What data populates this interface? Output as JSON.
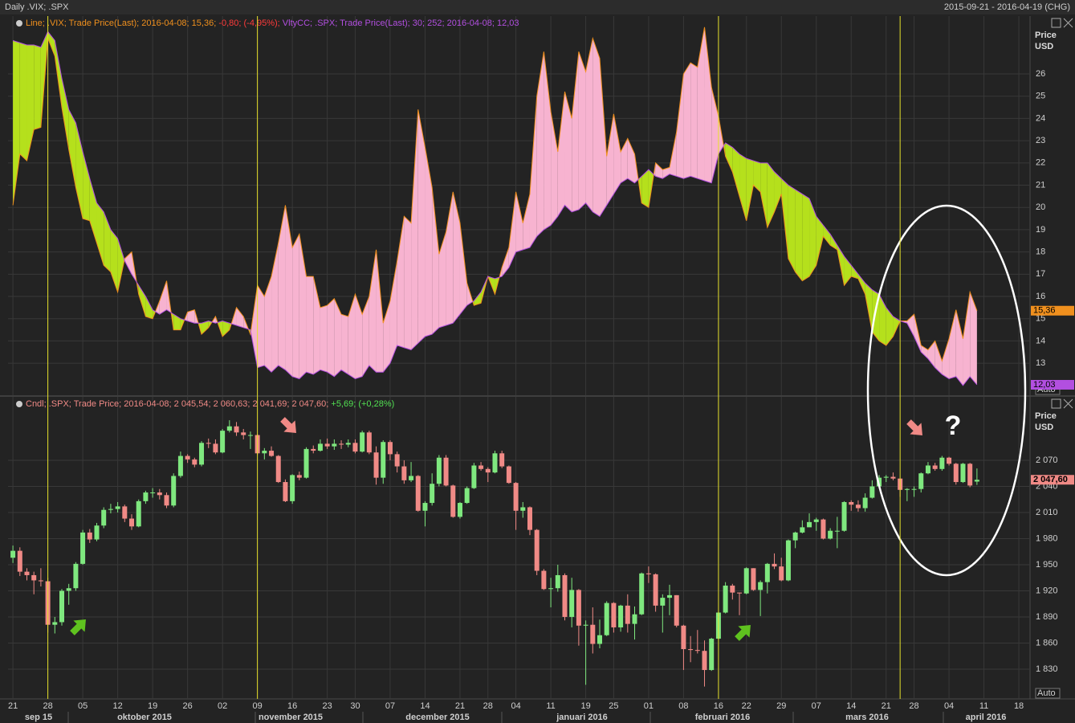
{
  "header": {
    "title": "Daily .VIX; .SPX",
    "range": "2015-09-21 - 2016-04-19 (CHG)"
  },
  "x_axis": {
    "xlim": [
      -0.7,
      145.6
    ],
    "xticks": [
      {
        "value": 0,
        "label": "21"
      },
      {
        "value": 5,
        "label": "28"
      },
      {
        "value": 10,
        "label": "05"
      },
      {
        "value": 15,
        "label": "12"
      },
      {
        "value": 20,
        "label": "19"
      },
      {
        "value": 25,
        "label": "26"
      },
      {
        "value": 30,
        "label": "02"
      },
      {
        "value": 35,
        "label": "09"
      },
      {
        "value": 40,
        "label": "16"
      },
      {
        "value": 45,
        "label": "23"
      },
      {
        "value": 49,
        "label": "30"
      },
      {
        "value": 54,
        "label": "07"
      },
      {
        "value": 59,
        "label": "14"
      },
      {
        "value": 64,
        "label": "21"
      },
      {
        "value": 68,
        "label": "28"
      },
      {
        "value": 72,
        "label": "04"
      },
      {
        "value": 77,
        "label": "11"
      },
      {
        "value": 82,
        "label": "19"
      },
      {
        "value": 86,
        "label": "25"
      },
      {
        "value": 91,
        "label": "01"
      },
      {
        "value": 96,
        "label": "08"
      },
      {
        "value": 101,
        "label": "16"
      },
      {
        "value": 105,
        "label": "22"
      },
      {
        "value": 110,
        "label": "29"
      },
      {
        "value": 115,
        "label": "07"
      },
      {
        "value": 120,
        "label": "14"
      },
      {
        "value": 125,
        "label": "21"
      },
      {
        "value": 129,
        "label": "28"
      },
      {
        "value": 134,
        "label": "04"
      },
      {
        "value": 139,
        "label": "11"
      },
      {
        "value": 144,
        "label": "18"
      }
    ],
    "months": [
      "sep 15",
      "oktober 2015",
      "november 2015",
      "december 2015",
      "januari 2016",
      "februari 2016",
      "mars 2016",
      "april 2016"
    ]
  },
  "event_lines": [
    5,
    35,
    101,
    127
  ],
  "annotations": {
    "question": "?"
  },
  "chart_data": [
    {
      "type": "line",
      "axis_label": [
        "Price",
        "USD"
      ],
      "scale_mode": "Auto",
      "ylim": [
        11.56,
        28.6
      ],
      "yticks": [
        13,
        14,
        15,
        16,
        17,
        18,
        19,
        20,
        21,
        22,
        23,
        24,
        25,
        26
      ],
      "fill_colors": {
        "above": "#f7b3d0",
        "below": "#b5e01c"
      },
      "series": [
        {
          "name": "Line; .VIX; Trade Price(Last); 2016-04-08; 15,36;",
          "change": "-0,80; (-4,95%);",
          "color": "#f0901e",
          "last_label": "15,36",
          "values": [
            20.1,
            22.4,
            22.1,
            23.5,
            23.6,
            27.6,
            26.8,
            24.5,
            22.6,
            20.9,
            19.5,
            19.4,
            18.4,
            17.4,
            17.1,
            16.2,
            17.7,
            18.0,
            16.1,
            15.1,
            15.0,
            15.8,
            16.7,
            14.5,
            14.5,
            15.3,
            15.4,
            14.3,
            14.6,
            15.1,
            14.2,
            14.5,
            15.5,
            15.1,
            14.3,
            16.5,
            16.0,
            16.9,
            18.4,
            20.1,
            18.2,
            18.8,
            16.9,
            16.9,
            15.5,
            15.6,
            15.9,
            15.2,
            15.1,
            16.1,
            15.2,
            16.0,
            18.1,
            14.8,
            15.8,
            17.6,
            19.6,
            19.3,
            24.4,
            22.7,
            20.9,
            17.9,
            18.9,
            20.7,
            19.3,
            16.6,
            15.6,
            15.7,
            16.9,
            16.1,
            17.3,
            18.2,
            20.7,
            19.3,
            20.6,
            25.0,
            27.0,
            24.3,
            22.5,
            25.2,
            24.0,
            27.0,
            26.1,
            27.6,
            26.7,
            22.3,
            24.2,
            22.5,
            23.1,
            22.4,
            20.2,
            20.0,
            22.0,
            21.7,
            21.8,
            23.4,
            26.0,
            26.5,
            26.3,
            28.1,
            25.4,
            24.1,
            22.3,
            21.6,
            20.5,
            19.4,
            21.0,
            20.7,
            19.1,
            19.8,
            20.6,
            17.7,
            17.1,
            16.7,
            16.9,
            17.4,
            18.7,
            18.3,
            18.1,
            16.5,
            16.9,
            16.8,
            16.1,
            14.4,
            14.0,
            13.8,
            14.2,
            14.9,
            14.9,
            15.2,
            13.8,
            13.6,
            14.0,
            13.1,
            14.1,
            15.4,
            14.1,
            16.2,
            15.36
          ]
        },
        {
          "name": "VltyCC; .SPX; Trade Price(Last); 30; 252; 2016-04-08; 12,03",
          "color": "#b24fe0",
          "last_label": "12,03",
          "values": [
            27.5,
            27.4,
            27.3,
            27.3,
            27.2,
            27.9,
            27.5,
            25.8,
            24.4,
            23.8,
            22.5,
            21.3,
            20.2,
            19.8,
            19.0,
            18.6,
            17.6,
            17.0,
            16.5,
            16.0,
            15.4,
            15.2,
            15.4,
            15.2,
            15.0,
            14.9,
            14.8,
            14.8,
            14.9,
            14.8,
            14.9,
            14.8,
            14.7,
            14.6,
            14.5,
            12.8,
            12.9,
            12.6,
            12.9,
            12.7,
            12.4,
            12.3,
            12.6,
            12.5,
            12.7,
            12.6,
            12.4,
            12.7,
            12.5,
            12.3,
            12.4,
            12.9,
            12.6,
            12.6,
            13.0,
            13.8,
            13.7,
            13.6,
            13.9,
            14.2,
            14.3,
            14.6,
            14.7,
            14.8,
            15.2,
            15.6,
            15.8,
            16.2,
            16.9,
            16.8,
            16.9,
            17.3,
            18.0,
            18.1,
            18.2,
            18.7,
            19.0,
            19.2,
            19.6,
            20.1,
            19.8,
            19.9,
            20.2,
            19.8,
            19.6,
            20.1,
            20.6,
            21.1,
            21.3,
            21.1,
            21.4,
            21.7,
            21.4,
            21.3,
            21.5,
            21.4,
            21.3,
            21.4,
            21.3,
            21.2,
            21.1,
            22.4,
            22.9,
            22.7,
            22.4,
            22.2,
            22.1,
            22.0,
            22.0,
            21.6,
            21.3,
            21.0,
            20.8,
            20.6,
            20.4,
            19.6,
            19.2,
            18.8,
            18.3,
            17.8,
            17.4,
            17.0,
            16.6,
            16.3,
            16.1,
            15.5,
            15.1,
            14.9,
            14.8,
            14.2,
            13.5,
            13.2,
            12.8,
            12.5,
            12.3,
            12.4,
            12.0,
            12.4,
            12.03
          ]
        }
      ]
    },
    {
      "type": "candlestick",
      "axis_label": [
        "Price",
        "USD"
      ],
      "scale_mode": "Auto",
      "ylim": [
        1795.8,
        2142.9
      ],
      "yticks": [
        {
          "value": 1830,
          "label": "1 830"
        },
        {
          "value": 1860,
          "label": "1 860"
        },
        {
          "value": 1890,
          "label": "1 890"
        },
        {
          "value": 1920,
          "label": "1 920"
        },
        {
          "value": 1950,
          "label": "1 950"
        },
        {
          "value": 1980,
          "label": "1 980"
        },
        {
          "value": 2010,
          "label": "2 010"
        },
        {
          "value": 2040,
          "label": "2 040"
        },
        {
          "value": 2070,
          "label": "2 070"
        }
      ],
      "legend": "Cndl; .SPX; Trade Price; 2016-04-08; 2 045,54; 2 060,63; 2 041,69; 2 047,60;",
      "change": "+5,69; (+0,28%)",
      "last_label": "2 047,60",
      "up_color": "#7fe87f",
      "down_color": "#f08a86",
      "open": [
        1958,
        1966,
        1942,
        1938,
        1932,
        1931,
        1881,
        1884,
        1920,
        1923,
        1951,
        1987,
        1979,
        1995,
        2013,
        2014,
        2017,
        2003,
        1994,
        2023,
        2033,
        2033,
        2030,
        2018,
        2052,
        2075,
        2071,
        2065,
        2090,
        2089,
        2079,
        2104,
        2109,
        2102,
        2099,
        2099,
        2078,
        2081,
        2075,
        2045,
        2023,
        2053,
        2050,
        2083,
        2081,
        2089,
        2086,
        2089,
        2088,
        2090,
        2080,
        2102,
        2079,
        2050,
        2091,
        2077,
        2063,
        2047,
        2052,
        2012,
        2021,
        2043,
        2073,
        2041,
        2005,
        2021,
        2038,
        2064,
        2060,
        2056,
        2078,
        2063,
        2044,
        2012,
        2016,
        1990,
        1943,
        1922,
        1923,
        1938,
        1890,
        1921,
        1880,
        1881,
        1859,
        1869,
        1906,
        1878,
        1903,
        1882,
        1893,
        1940,
        1939,
        1903,
        1912,
        1915,
        1880,
        1853,
        1852,
        1851,
        1829,
        1865,
        1895,
        1926,
        1918,
        1917,
        1946,
        1921,
        1930,
        1951,
        1948,
        1932,
        1978,
        1987,
        1993,
        1999,
        2002,
        1980,
        1989,
        1989,
        2022,
        2019,
        2015,
        2027,
        2040,
        2050,
        2051,
        2049,
        2036,
        2037,
        2037,
        2055,
        2064,
        2060,
        2073,
        2066,
        2045,
        2066,
        2045.54
      ],
      "high": [
        1972,
        1970,
        1946,
        1942,
        1946,
        1935,
        1890,
        1922,
        1928,
        1953,
        1990,
        1991,
        1998,
        2016,
        2020,
        2022,
        2019,
        2008,
        2025,
        2035,
        2038,
        2037,
        2033,
        2055,
        2080,
        2077,
        2073,
        2092,
        2095,
        2094,
        2106,
        2116,
        2114,
        2106,
        2103,
        2100,
        2084,
        2086,
        2076,
        2048,
        2054,
        2057,
        2085,
        2087,
        2094,
        2095,
        2094,
        2093,
        2094,
        2094,
        2104,
        2104,
        2086,
        2093,
        2093,
        2080,
        2070,
        2068,
        2053,
        2023,
        2055,
        2076,
        2076,
        2042,
        2022,
        2040,
        2067,
        2068,
        2062,
        2081,
        2081,
        2064,
        2045,
        2022,
        2017,
        1991,
        1945,
        1935,
        1950,
        1940,
        1935,
        1922,
        1886,
        1901,
        1887,
        1908,
        1907,
        1904,
        1916,
        1902,
        1941,
        1948,
        1940,
        1916,
        1927,
        1915,
        1881,
        1868,
        1875,
        1863,
        1866,
        1896,
        1930,
        1928,
        1918,
        1947,
        1946,
        1932,
        1952,
        1963,
        1958,
        1979,
        1988,
        2001,
        2009,
        2004,
        2003,
        1992,
        2005,
        2023,
        2024,
        2024,
        2032,
        2047,
        2053,
        2053,
        2056,
        2049,
        2038,
        2040,
        2056,
        2068,
        2067,
        2075,
        2074,
        2067,
        2067,
        2067,
        2060.63
      ],
      "low": [
        1952,
        1937,
        1932,
        1916,
        1925,
        1872,
        1871,
        1880,
        1904,
        1920,
        1950,
        1975,
        1977,
        1992,
        2009,
        2010,
        1999,
        1990,
        1993,
        2020,
        2027,
        2025,
        2015,
        2016,
        2050,
        2067,
        2062,
        2063,
        2084,
        2077,
        2078,
        2102,
        2098,
        2094,
        2083,
        2076,
        2071,
        2074,
        2044,
        2022,
        2020,
        2047,
        2049,
        2078,
        2080,
        2083,
        2082,
        2083,
        2085,
        2078,
        2079,
        2077,
        2042,
        2043,
        2070,
        2056,
        2043,
        2045,
        2011,
        1994,
        2018,
        2040,
        2040,
        2004,
        2003,
        2020,
        2037,
        2058,
        2045,
        2055,
        2061,
        2043,
        1990,
        2004,
        1984,
        1938,
        1921,
        1901,
        1919,
        1886,
        1878,
        1857,
        1812,
        1848,
        1854,
        1868,
        1872,
        1873,
        1872,
        1864,
        1892,
        1929,
        1896,
        1872,
        1892,
        1878,
        1829,
        1838,
        1848,
        1810,
        1828,
        1864,
        1894,
        1910,
        1892,
        1916,
        1920,
        1891,
        1917,
        1945,
        1931,
        1931,
        1969,
        1986,
        1994,
        1989,
        1979,
        1979,
        1969,
        1988,
        2012,
        2011,
        2011,
        2026,
        2040,
        2045,
        2047,
        2028,
        2023,
        2028,
        2033,
        2054,
        2058,
        2058,
        2064,
        2042,
        2044,
        2039,
        2041.69
      ],
      "close": [
        1966,
        1942,
        1938,
        1932,
        1931,
        1881,
        1884,
        1920,
        1923,
        1951,
        1987,
        1979,
        1995,
        2013,
        2014,
        2017,
        2003,
        1994,
        2023,
        2033,
        2033,
        2030,
        2018,
        2052,
        2075,
        2071,
        2065,
        2090,
        2089,
        2079,
        2104,
        2109,
        2102,
        2099,
        2099,
        2078,
        2081,
        2075,
        2045,
        2023,
        2053,
        2050,
        2083,
        2081,
        2089,
        2086,
        2089,
        2088,
        2090,
        2080,
        2102,
        2079,
        2050,
        2091,
        2077,
        2063,
        2047,
        2052,
        2012,
        2021,
        2043,
        2073,
        2041,
        2005,
        2021,
        2038,
        2064,
        2060,
        2056,
        2078,
        2063,
        2044,
        2012,
        2016,
        1990,
        1943,
        1922,
        1923,
        1938,
        1890,
        1921,
        1880,
        1881,
        1859,
        1869,
        1906,
        1878,
        1903,
        1882,
        1893,
        1940,
        1939,
        1903,
        1912,
        1915,
        1880,
        1853,
        1852,
        1851,
        1829,
        1865,
        1895,
        1926,
        1918,
        1917,
        1946,
        1921,
        1930,
        1951,
        1948,
        1932,
        1978,
        1987,
        1993,
        1999,
        2002,
        1980,
        1989,
        1989,
        2022,
        2019,
        2015,
        2027,
        2040,
        2050,
        2051,
        2049,
        2036,
        2037,
        2037,
        2055,
        2064,
        2060,
        2073,
        2066,
        2045,
        2066,
        2041,
        2047.6
      ]
    }
  ]
}
